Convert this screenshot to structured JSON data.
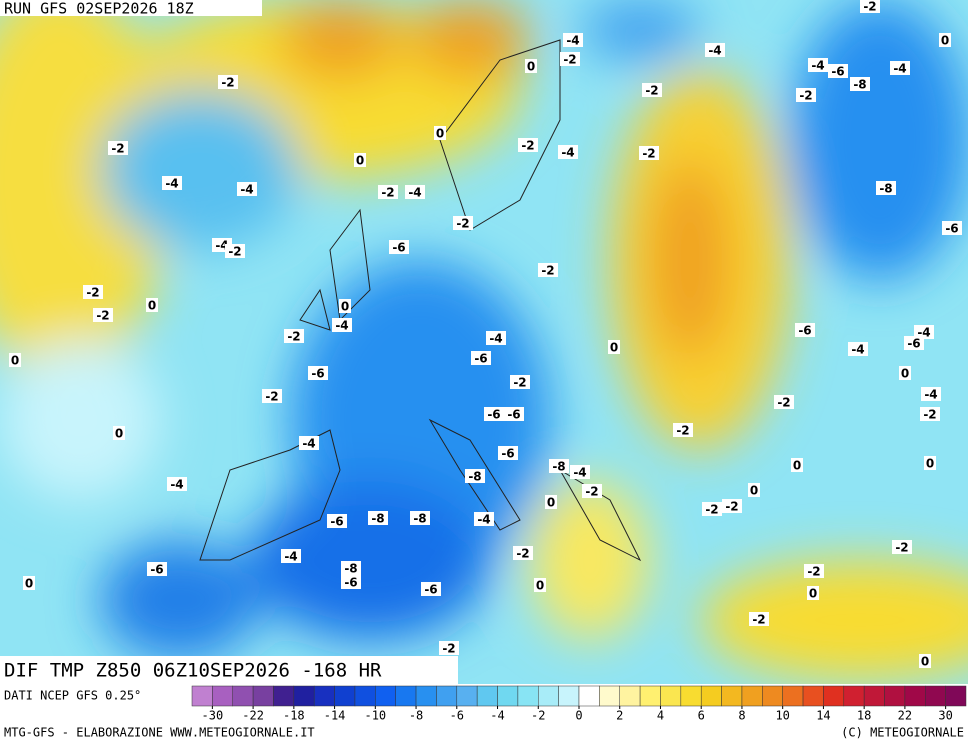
{
  "header": {
    "run": "RUN GFS 02SEP2026 18Z"
  },
  "map": {
    "title": "DIF TMP Z850 06Z10SEP2026 -168 HR",
    "contour_labels": [
      "-2",
      "-2",
      "-4",
      "-4",
      "-4",
      "-2",
      "-2",
      "0",
      "-2",
      "0",
      "-2",
      "0",
      "-4",
      "-6",
      "-2",
      "0",
      "-4",
      "-4",
      "-6",
      "-8",
      "-8",
      "-4",
      "-8",
      "-6",
      "-6",
      "0",
      "-6",
      "-2",
      "0",
      "0",
      "-2",
      "-4",
      "-6",
      "-2",
      "-2",
      "-4",
      "-2",
      "-2",
      "-4",
      "-6",
      "-2",
      "0",
      "-6",
      "-6",
      "-6",
      "-8",
      "-4",
      "-2",
      "0",
      "-8",
      "-4",
      "-2",
      "0",
      "-4",
      "-2",
      "0",
      "-4",
      "-2",
      "-2",
      "0",
      "-4",
      "-6",
      "-8",
      "-4",
      "-2",
      "-8",
      "-6",
      "-6",
      "-4",
      "-4",
      "-6",
      "0",
      "-4",
      "-2",
      "-2",
      "-2",
      "0",
      "0",
      "0",
      "-2",
      "-2",
      "-2",
      "-2",
      "0",
      "-2",
      "0"
    ]
  },
  "colorbar": {
    "source": "DATI NCEP GFS 0.25°",
    "colors": [
      "#c080d0",
      "#a860c0",
      "#9050b0",
      "#7840a0",
      "#402090",
      "#2020a0",
      "#1830c0",
      "#1040d0",
      "#1050e0",
      "#1060f0",
      "#1878f0",
      "#2890f0",
      "#40a0f0",
      "#58b0f0",
      "#60c8f0",
      "#70d8f0",
      "#88e4f4",
      "#a8ecf8",
      "#c8f4fc",
      "#ffffff",
      "#fffacc",
      "#fff3a0",
      "#fff070",
      "#fae650",
      "#f8dc30",
      "#f5cc20",
      "#f3b820",
      "#f0a020",
      "#ee8a20",
      "#ec7020",
      "#e85020",
      "#e03020",
      "#d02030",
      "#c01838",
      "#b01040",
      "#a00848",
      "#900850",
      "#800858"
    ],
    "labels": [
      -30,
      -22,
      -18,
      -14,
      -10,
      -8,
      -6,
      -4,
      -2,
      0,
      2,
      4,
      6,
      8,
      10,
      14,
      18,
      22,
      30
    ]
  },
  "footer": {
    "left": "MTG-GFS - ELABORAZIONE WWW.METEOGIORNALE.IT",
    "right": "(C) METEOGIORNALE"
  }
}
